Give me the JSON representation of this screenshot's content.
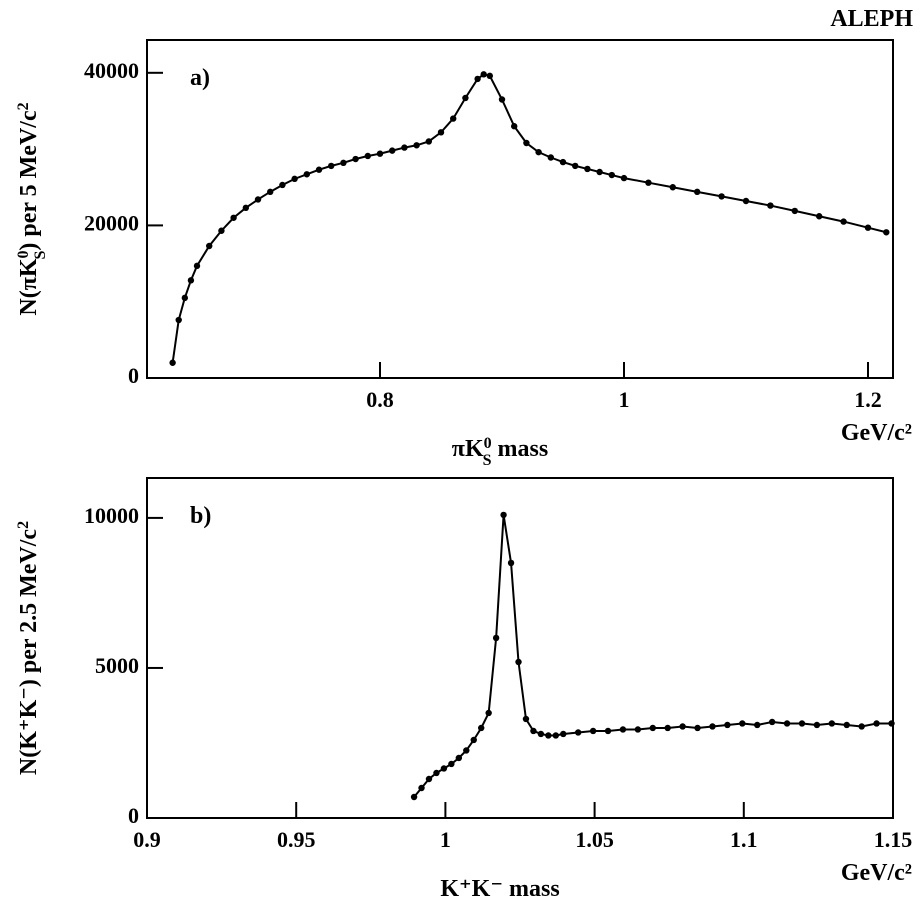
{
  "chart_data": [
    {
      "type": "scatter",
      "title": "ALEPH",
      "panel_label": "a)",
      "x_label": [
        {
          "text": "πK"
        },
        {
          "text": "0",
          "pos": "sup"
        },
        {
          "text": "S",
          "pos": "sub"
        },
        {
          "text": " mass"
        }
      ],
      "x_unit": "GeV/c²",
      "y_label": [
        {
          "text": "N(πK"
        },
        {
          "text": "0",
          "pos": "sup"
        },
        {
          "text": "S",
          "pos": "sub"
        },
        {
          "text": ") per 5 MeV/c"
        },
        {
          "text": "2",
          "pos": "sup"
        }
      ],
      "xlim": [
        0.609,
        1.2205
      ],
      "ylim": [
        0,
        44300
      ],
      "xticks": [
        0.8,
        1,
        1.2
      ],
      "yticks": [
        0,
        20000,
        40000
      ],
      "x": [
        0.63,
        0.635,
        0.64,
        0.645,
        0.65,
        0.66,
        0.67,
        0.68,
        0.69,
        0.7,
        0.71,
        0.72,
        0.73,
        0.74,
        0.75,
        0.76,
        0.77,
        0.78,
        0.79,
        0.8,
        0.81,
        0.82,
        0.83,
        0.84,
        0.85,
        0.86,
        0.87,
        0.88,
        0.885,
        0.89,
        0.9,
        0.91,
        0.92,
        0.93,
        0.94,
        0.95,
        0.96,
        0.97,
        0.98,
        0.99,
        1.0,
        1.02,
        1.04,
        1.06,
        1.08,
        1.1,
        1.12,
        1.14,
        1.16,
        1.18,
        1.2,
        1.215
      ],
      "series": [
        {
          "color": "#000000",
          "markers": true,
          "line": true,
          "values": [
            2000,
            7600,
            10500,
            12800,
            14700,
            17300,
            19300,
            21000,
            22300,
            23400,
            24400,
            25300,
            26100,
            26700,
            27300,
            27800,
            28200,
            28700,
            29100,
            29400,
            29800,
            30200,
            30500,
            31000,
            32200,
            34000,
            36700,
            39200,
            39800,
            39600,
            36500,
            33000,
            30800,
            29600,
            28900,
            28300,
            27800,
            27400,
            27000,
            26600,
            26200,
            25600,
            25000,
            24400,
            23800,
            23200,
            22600,
            21900,
            21200,
            20500,
            19700,
            19100
          ]
        }
      ]
    },
    {
      "type": "scatter",
      "panel_label": "b)",
      "x_label": [
        {
          "text": "K⁺K⁻ mass"
        }
      ],
      "x_unit": "GeV/c²",
      "y_label": [
        {
          "text": "N(K⁺K⁻) per 2.5 MeV/c"
        },
        {
          "text": "2",
          "pos": "sup"
        }
      ],
      "xlim": [
        0.9,
        1.15
      ],
      "ylim": [
        0,
        11330
      ],
      "xticks": [
        0.9,
        0.95,
        1,
        1.05,
        1.1,
        1.15
      ],
      "yticks": [
        0,
        5000,
        10000
      ],
      "x": [
        0.9895,
        0.992,
        0.9945,
        0.997,
        0.9995,
        1.002,
        1.0045,
        1.007,
        1.0095,
        1.012,
        1.0145,
        1.017,
        1.0195,
        1.022,
        1.0245,
        1.027,
        1.0295,
        1.032,
        1.0345,
        1.037,
        1.0395,
        1.0445,
        1.0495,
        1.0545,
        1.0595,
        1.0645,
        1.0695,
        1.0745,
        1.0795,
        1.0845,
        1.0895,
        1.0945,
        1.0995,
        1.1045,
        1.1095,
        1.1145,
        1.1195,
        1.1245,
        1.1295,
        1.1345,
        1.1395,
        1.1445,
        1.1495
      ],
      "series": [
        {
          "color": "#000000",
          "markers": true,
          "line": true,
          "values": [
            700,
            1000,
            1300,
            1500,
            1650,
            1800,
            2000,
            2250,
            2600,
            3000,
            3500,
            6000,
            10100,
            8500,
            5200,
            3300,
            2900,
            2800,
            2750,
            2750,
            2800,
            2850,
            2900,
            2900,
            2950,
            2950,
            3000,
            3000,
            3050,
            3000,
            3050,
            3100,
            3150,
            3100,
            3200,
            3150,
            3150,
            3100,
            3150,
            3100,
            3050,
            3150,
            3150
          ]
        }
      ]
    }
  ]
}
